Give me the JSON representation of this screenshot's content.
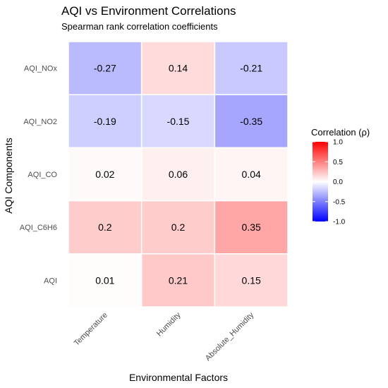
{
  "chart_data": {
    "type": "heatmap",
    "title": "AQI vs Environment Correlations",
    "subtitle": "Spearman rank correlation coefficients",
    "xlabel": "Environmental Factors",
    "ylabel": "AQI Components",
    "x_categories": [
      "Temperature",
      "Humidity",
      "Absolute_Humidity"
    ],
    "y_categories": [
      "AQI_NOx",
      "AQI_NO2",
      "AQI_CO",
      "AQI_C6H6",
      "AQI"
    ],
    "values": [
      [
        -0.27,
        0.14,
        -0.21
      ],
      [
        -0.19,
        -0.15,
        -0.35
      ],
      [
        0.02,
        0.06,
        0.04
      ],
      [
        0.2,
        0.2,
        0.35
      ],
      [
        0.01,
        0.21,
        0.15
      ]
    ],
    "cell_labels": [
      [
        "-0.27",
        "0.14",
        "-0.21"
      ],
      [
        "-0.19",
        "-0.15",
        "-0.35"
      ],
      [
        "0.02",
        "0.06",
        "0.04"
      ],
      [
        "0.2",
        "0.2",
        "0.35"
      ],
      [
        "0.01",
        "0.21",
        "0.15"
      ]
    ],
    "legend": {
      "title": "Correlation (ρ)",
      "placement": "right",
      "limits": [
        -1,
        1
      ],
      "breaks": [
        1.0,
        0.5,
        0.0,
        -0.5,
        -1.0
      ],
      "break_labels": [
        "1.0",
        "0.5",
        "0.0",
        "-0.5",
        "-1.0"
      ]
    },
    "colors": {
      "low": "#0000ff",
      "mid": "#ffffff",
      "high": "#ff0000",
      "grid_line": "#ffffff"
    },
    "grid": false
  }
}
